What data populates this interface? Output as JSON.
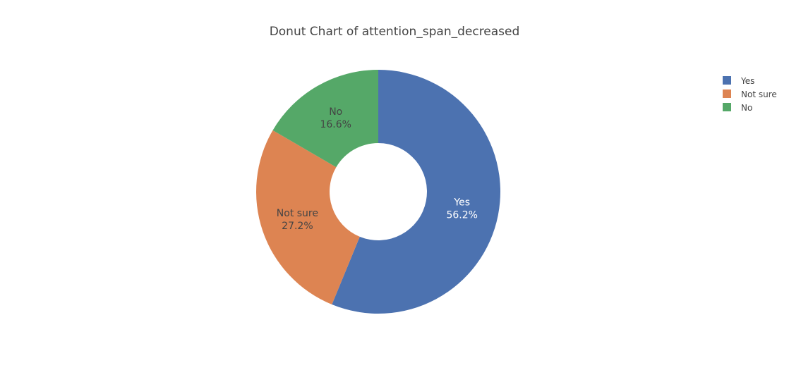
{
  "chart_data": {
    "type": "pie",
    "hole": true,
    "title": "Donut Chart of attention_span_decreased",
    "categories": [
      "Yes",
      "Not sure",
      "No"
    ],
    "values": [
      56.2,
      27.2,
      16.6
    ],
    "value_labels": [
      "56.2%",
      "27.2%",
      "16.6%"
    ],
    "colors": [
      "#4c72b0",
      "#dd8452",
      "#55a868"
    ],
    "label_colors": [
      "#ffffff",
      "#444444",
      "#444444"
    ],
    "legend_position": "top-right",
    "direction": "clockwise",
    "start_angle": "top"
  }
}
